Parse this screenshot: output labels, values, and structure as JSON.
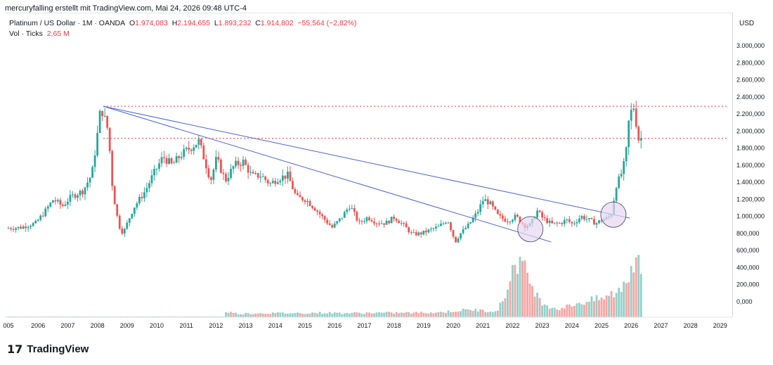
{
  "header": {
    "credit": "mercuryfalling erstellt mit TradingView.com, Mai 24, 2026 09:48 UTC-4"
  },
  "legend": {
    "symbol": "Platinum / US Dollar · 1M · OANDA",
    "open_label": "O",
    "open": "1.974,083",
    "high_label": "H",
    "high": "2.194,655",
    "low_label": "L",
    "low": "1.893,232",
    "close_label": "C",
    "close": "1.914,802",
    "change": "−55,564 (−2,82%)",
    "vol_label": "Vol · Ticks",
    "vol_value": "2,65 M"
  },
  "axis": {
    "currency": "USD"
  },
  "branding": {
    "logo_text": "TradingView"
  },
  "colors": {
    "up": "#26a69a",
    "down": "#ef5350",
    "vol_up": "#8fd1c9",
    "vol_down": "#f5a5a3",
    "trend": "#4a63d8",
    "level": "#f23645",
    "circle_fill": "#e6d7f0",
    "circle_stroke": "#3a3a5a"
  },
  "chart_data": {
    "type": "candlestick",
    "title": "Platinum / US Dollar · 1M · OANDA",
    "x_ticks": [
      "005",
      "2006",
      "2007",
      "2008",
      "2009",
      "2010",
      "2011",
      "2012",
      "2013",
      "2014",
      "2015",
      "2016",
      "2017",
      "2018",
      "2019",
      "2020",
      "2021",
      "2022",
      "2023",
      "2024",
      "2025",
      "2026",
      "2027",
      "2028",
      "2029"
    ],
    "y_ticks": [
      "3.000,000",
      "2.800,000",
      "2.600,000",
      "2.400,000",
      "2.200,000",
      "2.000,000",
      "1.800,000",
      "1.600,000",
      "1.400,000",
      "1.200,000",
      "1.000,000",
      "800,000",
      "600,000",
      "400,000",
      "200,000",
      "0,000"
    ],
    "ylim": [
      0,
      3000
    ],
    "price_path": [
      [
        2005.0,
        860
      ],
      [
        2005.5,
        870
      ],
      [
        2006.0,
        920
      ],
      [
        2006.3,
        1050
      ],
      [
        2006.6,
        1200
      ],
      [
        2006.9,
        1120
      ],
      [
        2007.2,
        1230
      ],
      [
        2007.6,
        1300
      ],
      [
        2007.9,
        1500
      ],
      [
        2008.1,
        2000
      ],
      [
        2008.2,
        2290
      ],
      [
        2008.45,
        2000
      ],
      [
        2008.6,
        1300
      ],
      [
        2008.8,
        900
      ],
      [
        2008.95,
        800
      ],
      [
        2009.3,
        1100
      ],
      [
        2009.7,
        1300
      ],
      [
        2009.95,
        1480
      ],
      [
        2010.3,
        1700
      ],
      [
        2010.6,
        1600
      ],
      [
        2010.9,
        1720
      ],
      [
        2011.2,
        1800
      ],
      [
        2011.5,
        1880
      ],
      [
        2011.7,
        1660
      ],
      [
        2011.9,
        1420
      ],
      [
        2012.1,
        1680
      ],
      [
        2012.4,
        1420
      ],
      [
        2012.7,
        1600
      ],
      [
        2013.0,
        1640
      ],
      [
        2013.3,
        1470
      ],
      [
        2013.6,
        1480
      ],
      [
        2013.9,
        1380
      ],
      [
        2014.2,
        1450
      ],
      [
        2014.5,
        1480
      ],
      [
        2014.8,
        1220
      ],
      [
        2015.1,
        1200
      ],
      [
        2015.4,
        1100
      ],
      [
        2015.7,
        980
      ],
      [
        2016.0,
        870
      ],
      [
        2016.3,
        980
      ],
      [
        2016.6,
        1130
      ],
      [
        2016.9,
        920
      ],
      [
        2017.2,
        990
      ],
      [
        2017.5,
        930
      ],
      [
        2017.8,
        920
      ],
      [
        2018.1,
        990
      ],
      [
        2018.4,
        900
      ],
      [
        2018.7,
        790
      ],
      [
        2019.0,
        800
      ],
      [
        2019.3,
        840
      ],
      [
        2019.6,
        880
      ],
      [
        2019.9,
        960
      ],
      [
        2020.15,
        700
      ],
      [
        2020.3,
        790
      ],
      [
        2020.6,
        900
      ],
      [
        2020.9,
        1050
      ],
      [
        2021.1,
        1200
      ],
      [
        2021.3,
        1160
      ],
      [
        2021.6,
        1000
      ],
      [
        2021.9,
        950
      ],
      [
        2022.2,
        1000
      ],
      [
        2022.5,
        890
      ],
      [
        2022.7,
        900
      ],
      [
        2022.9,
        1070
      ],
      [
        2023.1,
        980
      ],
      [
        2023.4,
        910
      ],
      [
        2023.7,
        920
      ],
      [
        2023.9,
        960
      ],
      [
        2024.1,
        910
      ],
      [
        2024.4,
        1000
      ],
      [
        2024.7,
        950
      ],
      [
        2024.9,
        920
      ],
      [
        2025.1,
        960
      ],
      [
        2025.3,
        980
      ],
      [
        2025.45,
        1050
      ],
      [
        2025.55,
        1350
      ],
      [
        2025.7,
        1450
      ],
      [
        2025.8,
        1550
      ],
      [
        2025.9,
        1700
      ],
      [
        2026.0,
        2100
      ],
      [
        2026.1,
        2250
      ],
      [
        2026.2,
        2300
      ],
      [
        2026.3,
        1900
      ],
      [
        2026.38,
        1915
      ]
    ],
    "horizontal_levels": [
      2290,
      1915
    ],
    "trendlines": [
      {
        "from": [
          2008.2,
          2290
        ],
        "to": [
          2025.95,
          980
        ]
      },
      {
        "from": [
          2008.2,
          2290
        ],
        "to": [
          2023.3,
          700
        ]
      }
    ],
    "circles": [
      {
        "center": [
          2022.6,
          850
        ]
      },
      {
        "center": [
          2025.4,
          1020
        ]
      }
    ],
    "volume_axis_label": "Vol · Ticks",
    "volume_series": [
      [
        2012.25,
        0.18
      ],
      [
        2012.75,
        0.1
      ],
      [
        2013.5,
        0.12
      ],
      [
        2014.5,
        0.12
      ],
      [
        2015.5,
        0.13
      ],
      [
        2016.5,
        0.12
      ],
      [
        2017.5,
        0.13
      ],
      [
        2018.5,
        0.13
      ],
      [
        2019.5,
        0.14
      ],
      [
        2020.2,
        0.2
      ],
      [
        2020.7,
        0.22
      ],
      [
        2021.1,
        0.18
      ],
      [
        2021.5,
        0.22
      ],
      [
        2021.75,
        0.62
      ],
      [
        2021.95,
        1.3
      ],
      [
        2022.05,
        1.55
      ],
      [
        2022.15,
        1.7
      ],
      [
        2022.3,
        1.6
      ],
      [
        2022.5,
        1.2
      ],
      [
        2022.7,
        0.9
      ],
      [
        2022.9,
        0.5
      ],
      [
        2023.2,
        0.35
      ],
      [
        2023.5,
        0.25
      ],
      [
        2023.8,
        0.3
      ],
      [
        2024.1,
        0.4
      ],
      [
        2024.4,
        0.45
      ],
      [
        2024.7,
        0.5
      ],
      [
        2025.0,
        0.55
      ],
      [
        2025.2,
        0.6
      ],
      [
        2025.4,
        0.7
      ],
      [
        2025.6,
        0.8
      ],
      [
        2025.85,
        1.1
      ],
      [
        2026.0,
        1.5
      ],
      [
        2026.1,
        1.65
      ],
      [
        2026.2,
        2.2
      ],
      [
        2026.28,
        1.8
      ],
      [
        2026.36,
        1.2
      ]
    ]
  }
}
